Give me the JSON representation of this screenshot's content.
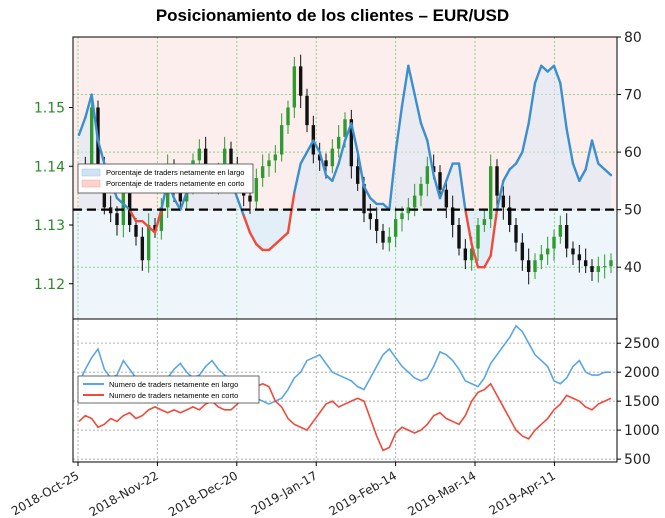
{
  "title": "Posicionamiento de los clientes – EUR/USD",
  "colors": {
    "long": "#3a8fd0",
    "long_fill": "#dbe9f6",
    "short": "#f04a3a",
    "short_fill": "#fde3e0",
    "candle_up": "#2f9a2f",
    "candle_down": "#111111",
    "grid_top": "#e8b4b4",
    "grid_bottom": "#8fcf8f"
  },
  "legend_top": [
    {
      "label": "Porcentaje de traders netamente en largo",
      "color": "#3a8fd0"
    },
    {
      "label": "Porcentaje de traders netamente en corto",
      "color": "#f04a3a"
    }
  ],
  "legend_bottom": [
    {
      "label": "Numero de traders netamente en largo",
      "color": "#3a8fd0"
    },
    {
      "label": "Numero de traders netamente en corto",
      "color": "#f04a3a"
    }
  ],
  "chart_data": [
    {
      "type": "line",
      "panel": "top",
      "x_labels": [
        "2018-Oct-25",
        "2018-Nov-22",
        "2018-Dec-20",
        "2019-Jan-17",
        "2019-Feb-14",
        "2019-Mar-14",
        "2019-Apr-11"
      ],
      "price_axis": {
        "ticks": [
          "1.12",
          "1.13",
          "1.14",
          "1.15"
        ],
        "ylim": [
          1.114,
          1.162
        ]
      },
      "pct_axis": {
        "ticks": [
          "40",
          "50",
          "60",
          "70",
          "80"
        ],
        "ylim": [
          31,
          80
        ]
      },
      "reference_line": 50,
      "series": [
        {
          "name": "Porcentaje de traders netamente en largo",
          "values": [
            63,
            66,
            70,
            62,
            58,
            55,
            52,
            51,
            50,
            48,
            48,
            47,
            46,
            50,
            55,
            52,
            50,
            53,
            58,
            57,
            54,
            53,
            56,
            58,
            55,
            52,
            49,
            46,
            44,
            43,
            43,
            44,
            45,
            46,
            53,
            58,
            60,
            62,
            60,
            56,
            55,
            58,
            62,
            65,
            60,
            54,
            52,
            51,
            51,
            50,
            60,
            68,
            75,
            70,
            65,
            62,
            56,
            52,
            55,
            58,
            58,
            50,
            44,
            40,
            40,
            42,
            50,
            55,
            57,
            58,
            60,
            65,
            72,
            75,
            74,
            75,
            72,
            64,
            58,
            55,
            57,
            62,
            58,
            57,
            56
          ]
        }
      ],
      "price_path": [
        1.14,
        1.138,
        1.15,
        1.14,
        1.133,
        1.132,
        1.13,
        1.137,
        1.13,
        1.128,
        1.124,
        1.13,
        1.129,
        1.133,
        1.14,
        1.136,
        1.134,
        1.137,
        1.141,
        1.143,
        1.139,
        1.137,
        1.139,
        1.143,
        1.14,
        1.138,
        1.135,
        1.134,
        1.138,
        1.14,
        1.141,
        1.142,
        1.147,
        1.15,
        1.157,
        1.152,
        1.147,
        1.142,
        1.141,
        1.14,
        1.143,
        1.145,
        1.148,
        1.14,
        1.137,
        1.132,
        1.131,
        1.129,
        1.127,
        1.128,
        1.131,
        1.132,
        1.133,
        1.135,
        1.137,
        1.14,
        1.139,
        1.136,
        1.133,
        1.13,
        1.126,
        1.124,
        1.126,
        1.13,
        1.131,
        1.14,
        1.135,
        1.133,
        1.13,
        1.127,
        1.124,
        1.122,
        1.124,
        1.125,
        1.126,
        1.128,
        1.13,
        1.126,
        1.125,
        1.124,
        1.123,
        1.122,
        1.123,
        1.123,
        1.124
      ]
    },
    {
      "type": "line",
      "panel": "bottom",
      "count_axis": {
        "ticks": [
          "500",
          "1000",
          "1500",
          "2000",
          "2500"
        ],
        "ylim": [
          450,
          2900
        ]
      },
      "series": [
        {
          "name": "Numero de traders netamente en largo",
          "values": [
            1820,
            2050,
            2250,
            2400,
            2050,
            1900,
            1950,
            2200,
            2050,
            1900,
            1850,
            1780,
            1700,
            1760,
            1900,
            2050,
            2150,
            2000,
            1900,
            1950,
            2100,
            2200,
            2050,
            1950,
            1850,
            1750,
            1650,
            1600,
            1550,
            1500,
            1450,
            1500,
            1550,
            1700,
            1900,
            2000,
            2200,
            2250,
            2300,
            2150,
            2000,
            1950,
            1900,
            1850,
            1750,
            1700,
            1900,
            2100,
            2300,
            2400,
            2250,
            2100,
            2000,
            1900,
            1850,
            1900,
            2100,
            2350,
            2300,
            2200,
            2050,
            1850,
            1800,
            1750,
            1900,
            2150,
            2300,
            2450,
            2600,
            2800,
            2700,
            2500,
            2300,
            2200,
            2100,
            1850,
            1800,
            1900,
            2100,
            2200,
            2000,
            1950,
            1950,
            2000,
            2000
          ]
        },
        {
          "name": "Numero de traders netamente en corto",
          "values": [
            1150,
            1250,
            1200,
            1050,
            1100,
            1200,
            1150,
            1250,
            1300,
            1200,
            1250,
            1350,
            1400,
            1350,
            1300,
            1350,
            1300,
            1350,
            1400,
            1350,
            1450,
            1500,
            1400,
            1350,
            1350,
            1450,
            1600,
            1700,
            1750,
            1800,
            1750,
            1500,
            1400,
            1200,
            1100,
            1050,
            1000,
            1150,
            1300,
            1450,
            1500,
            1400,
            1450,
            1500,
            1550,
            1500,
            1200,
            900,
            650,
            700,
            950,
            1050,
            1000,
            950,
            1000,
            1100,
            1250,
            1300,
            1200,
            1150,
            1100,
            1250,
            1500,
            1650,
            1700,
            1800,
            1600,
            1400,
            1200,
            1000,
            900,
            850,
            1000,
            1100,
            1200,
            1350,
            1450,
            1600,
            1550,
            1500,
            1400,
            1350,
            1450,
            1500,
            1550
          ]
        }
      ]
    }
  ]
}
